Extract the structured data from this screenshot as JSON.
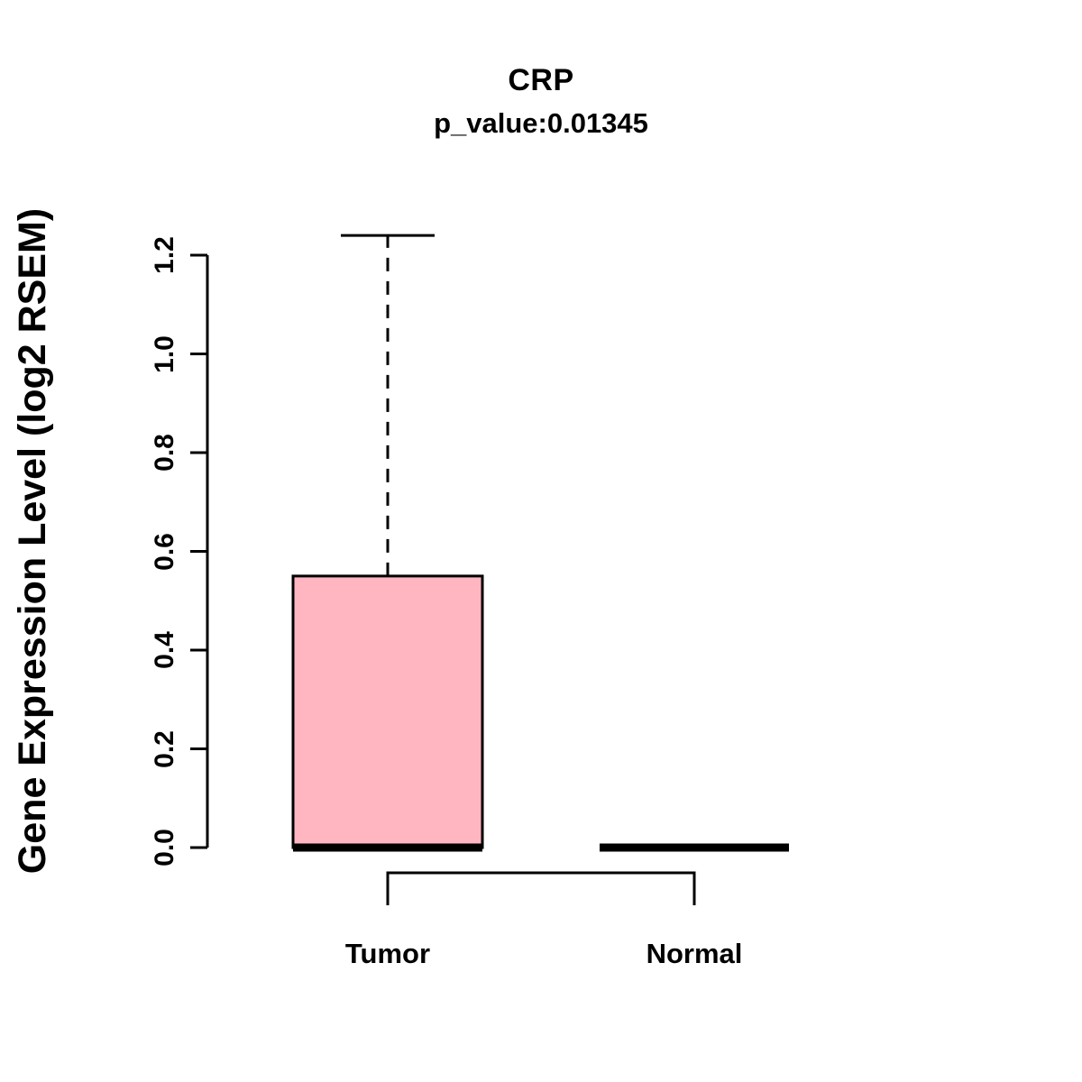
{
  "title": "CRP",
  "subtitle": "p_value:0.01345",
  "ylabel": "Gene Expression Level (log2 RSEM)",
  "chart_data": {
    "type": "boxplot",
    "title": "CRP",
    "subtitle": "p_value:0.01345",
    "ylabel": "Gene Expression Level (log2 RSEM)",
    "xlabel": "",
    "categories": [
      "Tumor",
      "Normal"
    ],
    "series": [
      {
        "name": "Tumor",
        "min": 0.0,
        "q1": 0.0,
        "median": 0.0,
        "q3": 0.55,
        "max": 1.24,
        "box_fill": "#FFB6C1"
      },
      {
        "name": "Normal",
        "min": 0.0,
        "q1": 0.0,
        "median": 0.0,
        "q3": 0.0,
        "max": 0.0,
        "box_fill": "#FFB6C1"
      }
    ],
    "yticks": [
      0.0,
      0.2,
      0.4,
      0.6,
      0.8,
      1.0,
      1.2
    ],
    "ylim": [
      0,
      1.24
    ],
    "grid": false,
    "legend": "none",
    "colors": {
      "box_fill": "#FFB6C1",
      "line": "#000000",
      "background": "#FFFFFF"
    }
  }
}
